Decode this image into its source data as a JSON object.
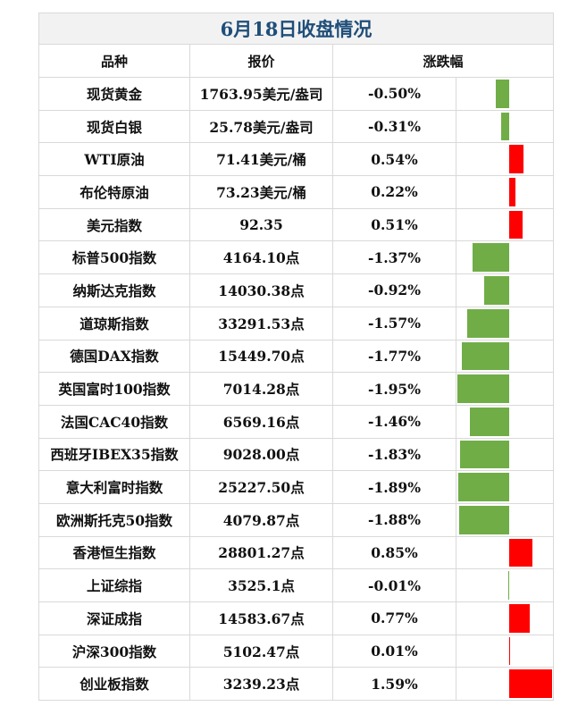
{
  "title": "6月18日收盘情况",
  "headers": {
    "name": "品种",
    "price": "报价",
    "change": "涨跌幅"
  },
  "colors": {
    "negative": "#70ad47",
    "positive": "#ff0000",
    "title": "#1f4e79"
  },
  "rows": [
    {
      "name": "现货黄金",
      "price": "1763.95美元/盎司",
      "change": "-0.50%",
      "value": -0.5
    },
    {
      "name": "现货白银",
      "price": "25.78美元/盎司",
      "change": "-0.31%",
      "value": -0.31
    },
    {
      "name": "WTI原油",
      "price": "71.41美元/桶",
      "change": "0.54%",
      "value": 0.54
    },
    {
      "name": "布伦特原油",
      "price": "73.23美元/桶",
      "change": "0.22%",
      "value": 0.22
    },
    {
      "name": "美元指数",
      "price": "92.35",
      "change": "0.51%",
      "value": 0.51
    },
    {
      "name": "标普500指数",
      "price": "4164.10点",
      "change": "-1.37%",
      "value": -1.37
    },
    {
      "name": "纳斯达克指数",
      "price": "14030.38点",
      "change": "-0.92%",
      "value": -0.92
    },
    {
      "name": "道琼斯指数",
      "price": "33291.53点",
      "change": "-1.57%",
      "value": -1.57
    },
    {
      "name": "德国DAX指数",
      "price": "15449.70点",
      "change": "-1.77%",
      "value": -1.77
    },
    {
      "name": "英国富时100指数",
      "price": "7014.28点",
      "change": "-1.95%",
      "value": -1.95
    },
    {
      "name": "法国CAC40指数",
      "price": "6569.16点",
      "change": "-1.46%",
      "value": -1.46
    },
    {
      "name": "西班牙IBEX35指数",
      "price": "9028.00点",
      "change": "-1.83%",
      "value": -1.83
    },
    {
      "name": "意大利富时指数",
      "price": "25227.50点",
      "change": "-1.89%",
      "value": -1.89
    },
    {
      "name": "欧洲斯托克50指数",
      "price": "4079.87点",
      "change": "-1.88%",
      "value": -1.88
    },
    {
      "name": "香港恒生指数",
      "price": "28801.27点",
      "change": "0.85%",
      "value": 0.85
    },
    {
      "name": "上证综指",
      "price": "3525.1点",
      "change": "-0.01%",
      "value": -0.01
    },
    {
      "name": "深证成指",
      "price": "14583.67点",
      "change": "0.77%",
      "value": 0.77
    },
    {
      "name": "沪深300指数",
      "price": "5102.47点",
      "change": "0.01%",
      "value": 0.01
    },
    {
      "name": "创业板指数",
      "price": "3239.23点",
      "change": "1.59%",
      "value": 1.59
    }
  ]
}
